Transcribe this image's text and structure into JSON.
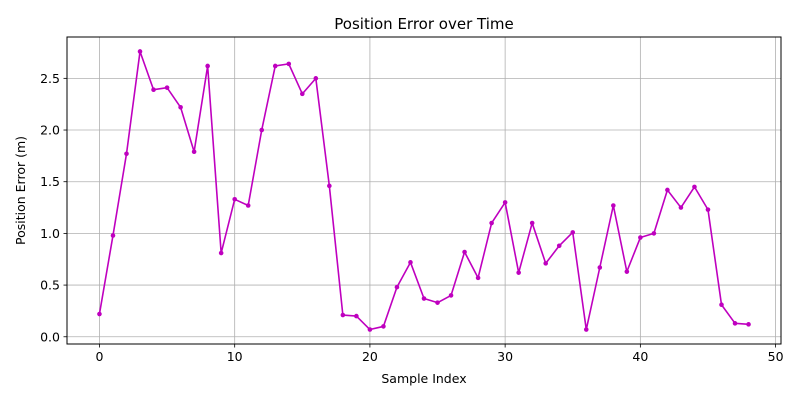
{
  "chart_data": {
    "type": "line",
    "title": "Position Error over Time",
    "xlabel": "Sample Index",
    "ylabel": "Position Error (m)",
    "xlim": [
      -2.4,
      50.4
    ],
    "ylim": [
      -0.07,
      2.9
    ],
    "xticks": [
      0,
      10,
      20,
      30,
      40,
      50
    ],
    "yticks": [
      0.0,
      0.5,
      1.0,
      1.5,
      2.0,
      2.5
    ],
    "grid": true,
    "series": [
      {
        "color": "#bf00bf",
        "marker": "circle",
        "x": [
          0,
          1,
          2,
          3,
          4,
          5,
          6,
          7,
          8,
          9,
          10,
          11,
          12,
          13,
          14,
          15,
          16,
          17,
          18,
          19,
          20,
          21,
          22,
          23,
          24,
          25,
          26,
          27,
          28,
          29,
          30,
          31,
          32,
          33,
          34,
          35,
          36,
          37,
          38,
          39,
          40,
          41,
          42,
          43,
          44,
          45,
          46,
          47,
          48
        ],
        "values": [
          0.22,
          0.98,
          1.77,
          2.76,
          2.39,
          2.41,
          2.22,
          1.79,
          2.62,
          0.81,
          1.33,
          1.27,
          2.0,
          2.62,
          2.64,
          2.35,
          2.5,
          1.46,
          0.21,
          0.2,
          0.07,
          0.1,
          0.48,
          0.72,
          0.37,
          0.33,
          0.4,
          0.82,
          0.57,
          1.1,
          1.3,
          0.62,
          1.1,
          0.71,
          0.88,
          1.01,
          0.07,
          0.67,
          1.27,
          0.63,
          0.96,
          1.0,
          1.42,
          1.25,
          1.45,
          1.23,
          0.31,
          0.13,
          0.12
        ]
      }
    ]
  }
}
